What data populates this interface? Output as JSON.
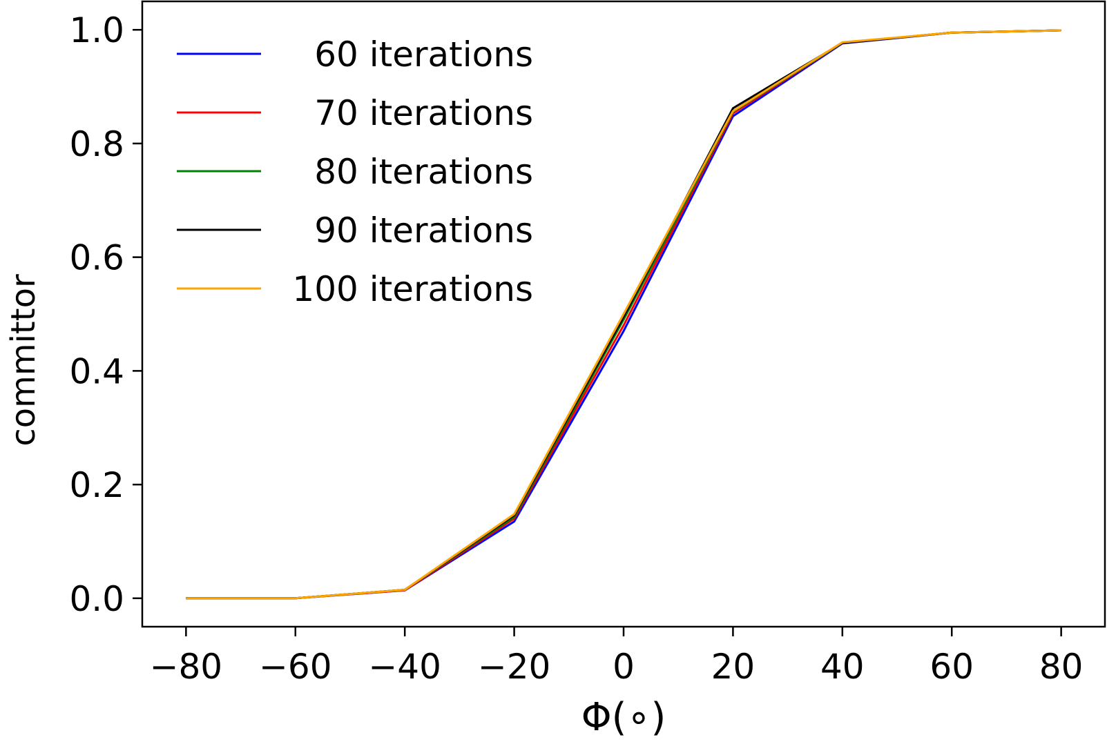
{
  "chart_data": {
    "type": "line",
    "xlabel": "Φ(∘)",
    "ylabel": "committor",
    "xlim": [
      -88,
      88
    ],
    "ylim": [
      -0.05,
      1.05
    ],
    "x_ticks": [
      -80,
      -60,
      -40,
      -20,
      0,
      20,
      40,
      60,
      80
    ],
    "x_tick_labels": [
      "−80",
      "−60",
      "−40",
      "−20",
      "0",
      "20",
      "40",
      "60",
      "80"
    ],
    "y_ticks": [
      0.0,
      0.2,
      0.4,
      0.6,
      0.8,
      1.0
    ],
    "y_tick_labels": [
      "0.0",
      "0.2",
      "0.4",
      "0.6",
      "0.8",
      "1.0"
    ],
    "grid": false,
    "legend_position": "upper-left",
    "x": [
      -80,
      -60,
      -40,
      -20,
      0,
      20,
      40,
      60,
      80
    ],
    "series": [
      {
        "name": "60 iterations",
        "color": "#0000ff",
        "values": [
          0.0,
          0.0,
          0.014,
          0.135,
          0.47,
          0.848,
          0.976,
          0.995,
          0.999
        ]
      },
      {
        "name": "70 iterations",
        "color": "#ff0000",
        "values": [
          0.0,
          0.0,
          0.014,
          0.14,
          0.48,
          0.853,
          0.977,
          0.995,
          0.999
        ]
      },
      {
        "name": "80 iterations",
        "color": "#008000",
        "values": [
          0.0,
          0.0,
          0.015,
          0.143,
          0.49,
          0.856,
          0.977,
          0.995,
          0.999
        ]
      },
      {
        "name": "90 iterations",
        "color": "#000000",
        "values": [
          0.0,
          0.0,
          0.015,
          0.146,
          0.495,
          0.862,
          0.977,
          0.995,
          0.999
        ]
      },
      {
        "name": "100 iterations",
        "color": "#ffa500",
        "values": [
          0.0,
          0.0,
          0.015,
          0.148,
          0.5,
          0.857,
          0.978,
          0.995,
          0.999
        ]
      }
    ]
  }
}
